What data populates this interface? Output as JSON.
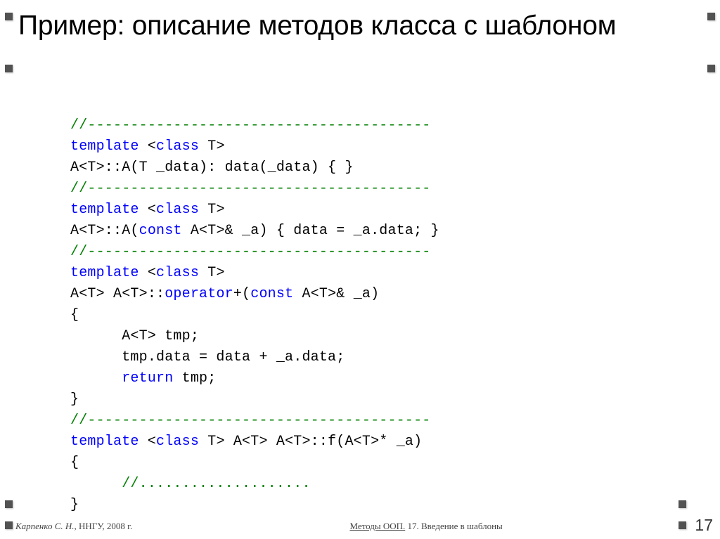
{
  "title": "Пример: описание методов класса с шаблоном",
  "code": {
    "sep": "//----------------------------------------",
    "template_kw": "template",
    "class_kw": "class",
    "const_kw": "const",
    "operator_kw": "operator",
    "return_kw": "return",
    "T": "T",
    "line2_open": " <",
    "line2_close": ">",
    "l3_a": "A<T>::A(T _data): data(_data) { }",
    "l6_a": "A<T>::A(",
    "l6_b": " A<T>& _a) { data = _a.data; }",
    "l9_a": "A<T> A<T>::",
    "l9_b": "+(",
    "l9_c": " A<T>& _a)",
    "l10": "{",
    "l11": "      A<T> tmp;",
    "l12": "      tmp.data = data + _a.data;",
    "l13_a": "      ",
    "l13_b": " tmp;",
    "l14": "}",
    "l16_a": " <",
    "l16_b": "> A<T> A<T>::f(A<T>* _a)",
    "l17": "{",
    "l18": "      //....................",
    "l19": "}"
  },
  "footer": {
    "author": "Карпенко С. Н.,",
    "org": " ННГУ, 2008 г.",
    "center_u": "Методы ООП.",
    "center_rest": " 17. Введение в шаблоны"
  },
  "page": "17",
  "colors": {
    "comment": "#008000",
    "keyword": "#0000ff",
    "text": "#000000",
    "bg": "#ffffff",
    "bullet": "#525252"
  },
  "fonts": {
    "title": "Verdana 39pt",
    "code": "Courier New 20pt",
    "footer": "Georgia 13pt",
    "pagenum": "Verdana 23pt"
  }
}
